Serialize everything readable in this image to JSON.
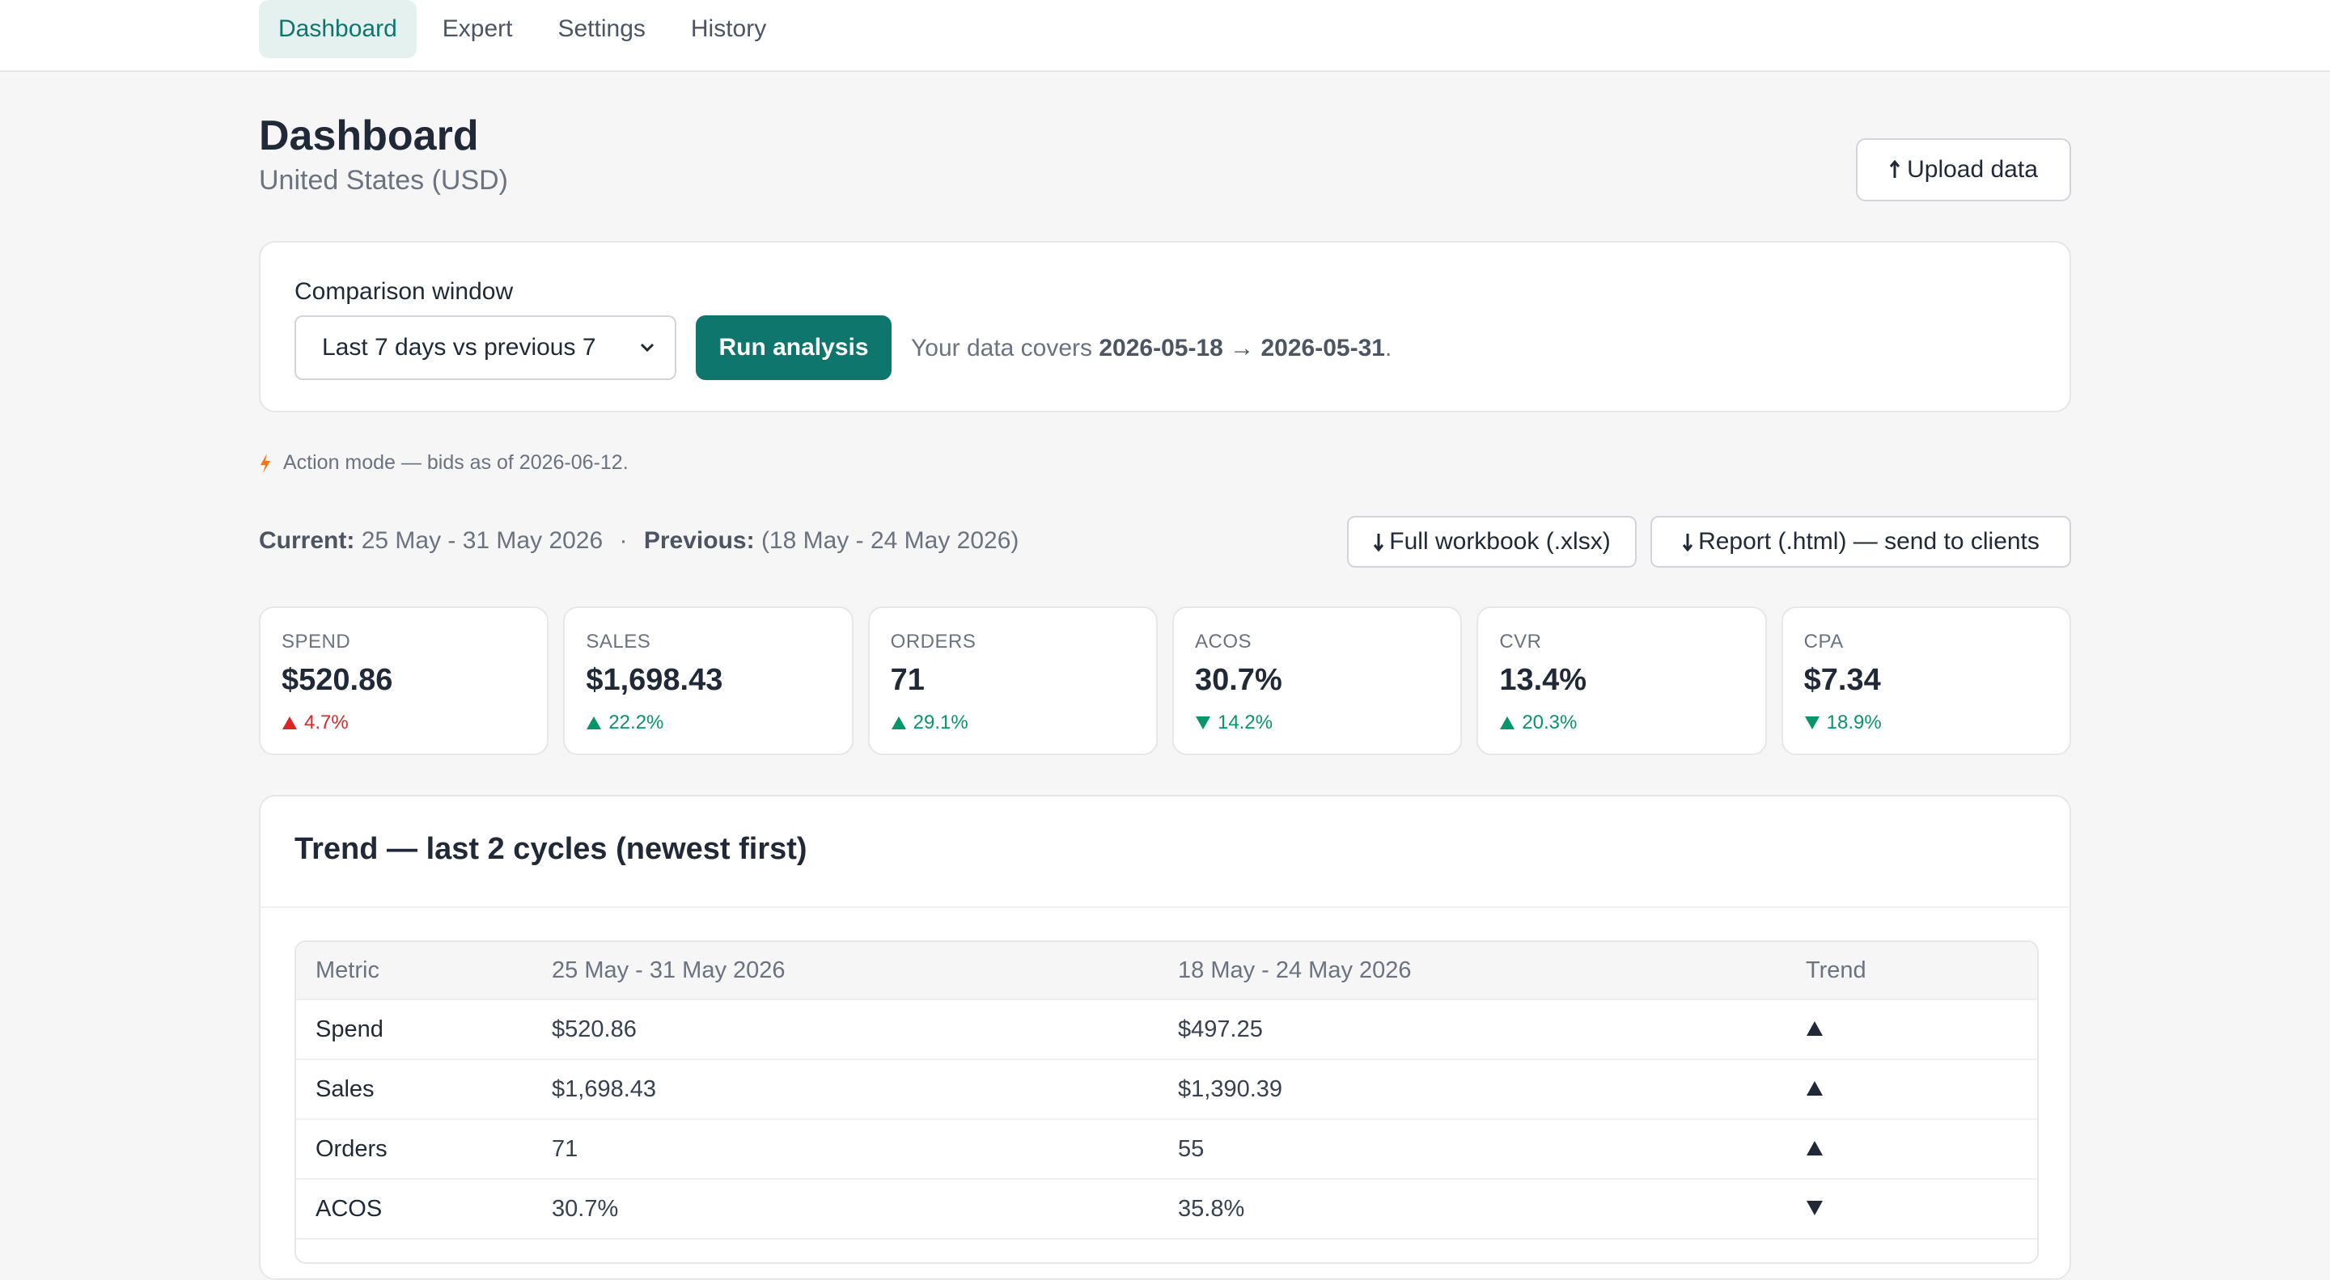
{
  "nav": {
    "tabs": [
      {
        "label": "Dashboard",
        "active": true
      },
      {
        "label": "Expert",
        "active": false
      },
      {
        "label": "Settings",
        "active": false
      },
      {
        "label": "History",
        "active": false
      }
    ]
  },
  "header": {
    "title": "Dashboard",
    "subtitle": "United States (USD)",
    "upload_label": "Upload data",
    "upload_icon": "upload-arrow-icon"
  },
  "comparison": {
    "label": "Comparison window",
    "selected": "Last 7 days vs previous 7",
    "run_label": "Run analysis",
    "coverage_prefix": "Your data covers ",
    "coverage_range": "2026-05-18 → 2026-05-31",
    "coverage_suffix": "."
  },
  "action_note": {
    "text": "Action mode — bids as of 2026-06-12.",
    "icon": "lightning-bolt-icon",
    "icon_color": "#f97316"
  },
  "periods": {
    "current_label": "Current:",
    "current_value": "25 May - 31 May 2026",
    "separator": "·",
    "previous_label": "Previous:",
    "previous_value": "(18 May - 24 May 2026)"
  },
  "downloads": {
    "xlsx_label": "Full workbook (.xlsx)",
    "html_label": "Report (.html) — send to clients"
  },
  "kpis": [
    {
      "label": "SPEND",
      "value": "$520.86",
      "delta": "4.7%",
      "direction": "up",
      "sentiment": "bad"
    },
    {
      "label": "SALES",
      "value": "$1,698.43",
      "delta": "22.2%",
      "direction": "up",
      "sentiment": "good"
    },
    {
      "label": "ORDERS",
      "value": "71",
      "delta": "29.1%",
      "direction": "up",
      "sentiment": "good"
    },
    {
      "label": "ACOS",
      "value": "30.7%",
      "delta": "14.2%",
      "direction": "down",
      "sentiment": "good"
    },
    {
      "label": "CVR",
      "value": "13.4%",
      "delta": "20.3%",
      "direction": "up",
      "sentiment": "good"
    },
    {
      "label": "CPA",
      "value": "$7.34",
      "delta": "18.9%",
      "direction": "down",
      "sentiment": "good"
    }
  ],
  "trend": {
    "title": "Trend — last 2 cycles (newest first)",
    "columns": [
      "Metric",
      "25 May - 31 May 2026",
      "18 May - 24 May 2026",
      "Trend"
    ],
    "rows": [
      {
        "metric": "Spend",
        "current": "$520.86",
        "previous": "$497.25",
        "trend": "up"
      },
      {
        "metric": "Sales",
        "current": "$1,698.43",
        "previous": "$1,390.39",
        "trend": "up"
      },
      {
        "metric": "Orders",
        "current": "71",
        "previous": "55",
        "trend": "up"
      },
      {
        "metric": "ACOS",
        "current": "30.7%",
        "previous": "35.8%",
        "trend": "down"
      }
    ]
  },
  "colors": {
    "accent": "#0f766e",
    "accent_light": "#e4f1ee",
    "bad": "#dc2626",
    "good": "#059669"
  }
}
